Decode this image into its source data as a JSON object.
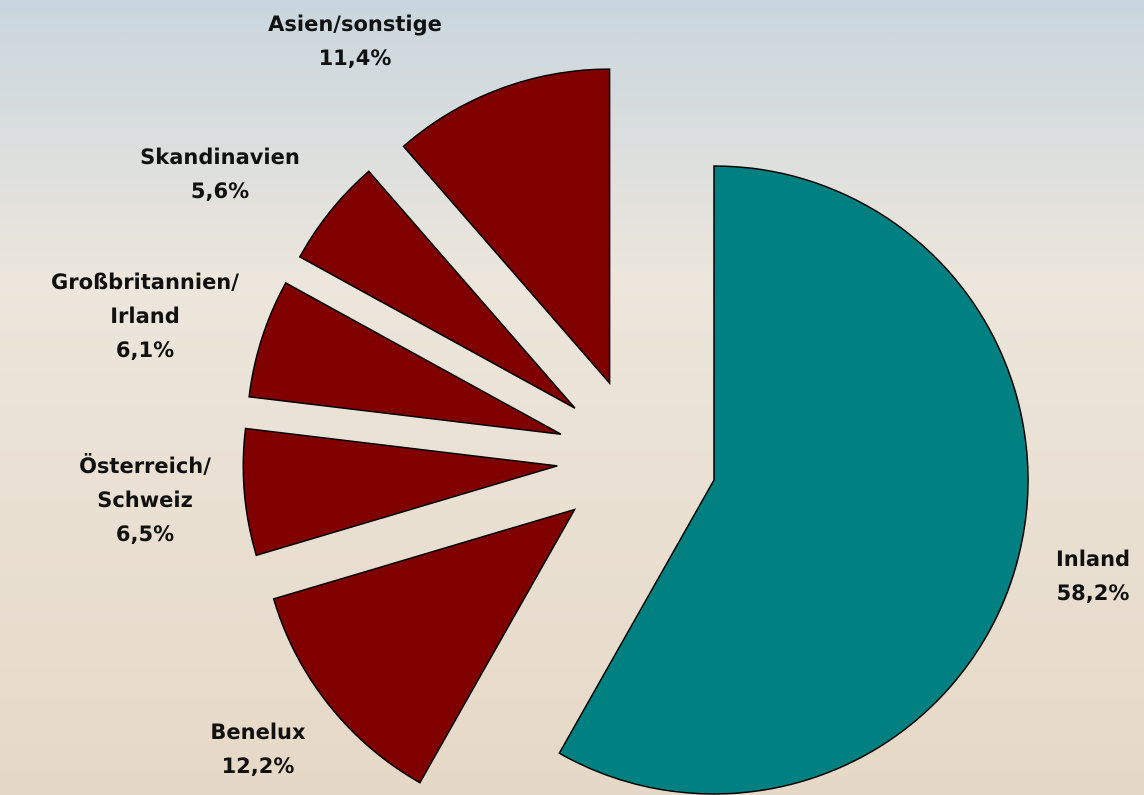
{
  "chart_data": {
    "type": "pie",
    "categories": [
      "Inland",
      "Benelux",
      "Österreich/\nSchweiz",
      "Großbritannien/\nIrland",
      "Skandinavien",
      "Asien/sonstige"
    ],
    "values": [
      58.2,
      12.2,
      6.5,
      6.1,
      5.6,
      11.4
    ],
    "value_labels": [
      "58,2%",
      "12,2%",
      "6,5%",
      "6,1%",
      "5,6%",
      "11,4%"
    ],
    "colors": [
      "#008080",
      "#800000",
      "#800000",
      "#800000",
      "#800000",
      "#800000"
    ]
  }
}
